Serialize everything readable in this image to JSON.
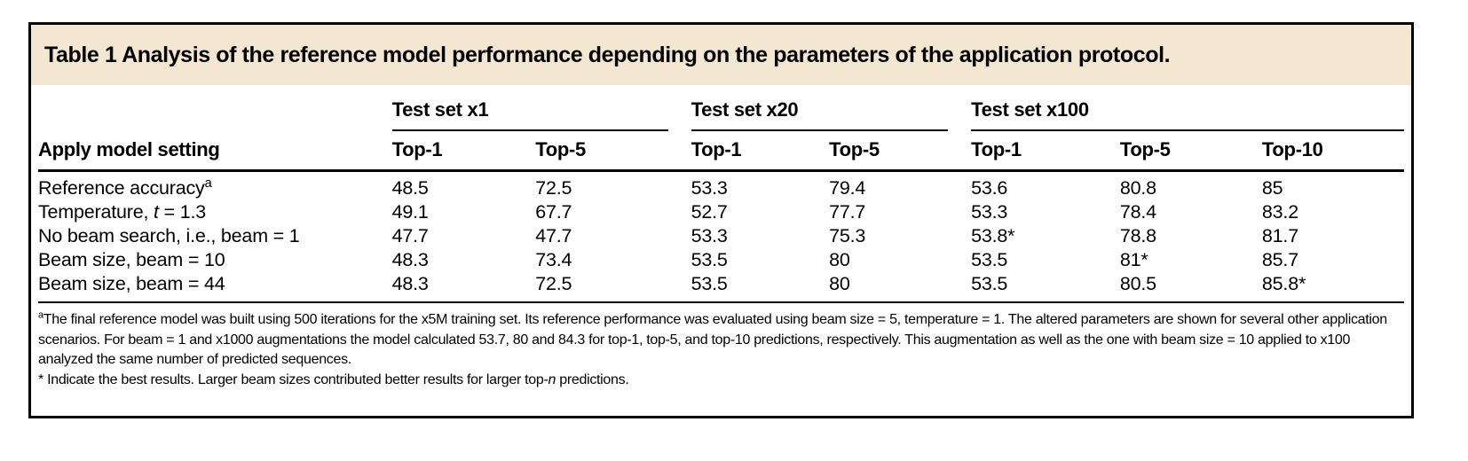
{
  "colors": {
    "title_band_bg": "#f3e7d2",
    "border": "#000000",
    "text": "#000000",
    "page_bg": "#ffffff"
  },
  "title": "Table 1 Analysis of the reference model performance depending on the parameters of the application protocol.",
  "table": {
    "corner_header": "Apply model setting",
    "groups": [
      {
        "label": "Test set x1",
        "span": 2
      },
      {
        "label": "Test set x20",
        "span": 2
      },
      {
        "label": "Test set x100",
        "span": 3
      }
    ],
    "columns": [
      "Top-1",
      "Top-5",
      "Top-1",
      "Top-5",
      "Top-1",
      "Top-5",
      "Top-10"
    ],
    "rows": [
      {
        "label": "Reference accuracy^a^",
        "values": [
          "48.5",
          "72.5",
          "53.3",
          "79.4",
          "53.6",
          "80.8",
          "85"
        ]
      },
      {
        "label": "Temperature, {{t}} = 1.3",
        "values": [
          "49.1",
          "67.7",
          "52.7",
          "77.7",
          "53.3",
          "78.4",
          "83.2"
        ]
      },
      {
        "label": "No beam search, i.e., beam = 1",
        "values": [
          "47.7",
          "47.7",
          "53.3",
          "75.3",
          "53.8*",
          "78.8",
          "81.7"
        ]
      },
      {
        "label": "Beam size, beam = 10",
        "values": [
          "48.3",
          "73.4",
          "53.5",
          "80",
          "53.5",
          "81*",
          "85.7"
        ]
      },
      {
        "label": "Beam size, beam = 44",
        "values": [
          "48.3",
          "72.5",
          "53.5",
          "80",
          "53.5",
          "80.5",
          "85.8*"
        ]
      }
    ]
  },
  "footnotes": [
    "^a^The final reference model was built using 500 iterations for the x5M training set. Its reference performance was evaluated using beam size = 5, temperature = 1. The altered parameters are shown for several other application scenarios. For beam = 1 and x1000 augmentations the model calculated 53.7, 80 and 84.3 for top-1, top-5, and top-10 predictions, respectively. This augmentation as well as the one with beam size = 10 applied to x100 analyzed the same number of predicted sequences.",
    "* Indicate the best results. Larger beam sizes contributed better results for larger top-{{n}} predictions."
  ]
}
